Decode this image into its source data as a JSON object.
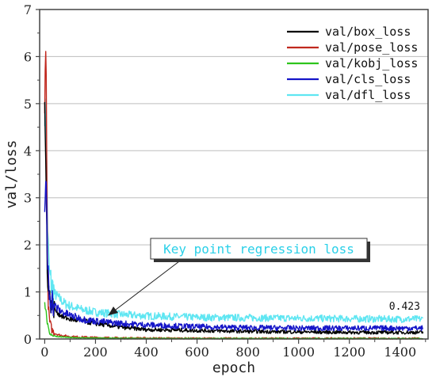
{
  "chart_data": {
    "type": "line",
    "xlabel": "epoch",
    "ylabel": "val/loss",
    "xlim": [
      -20,
      1510
    ],
    "ylim": [
      0,
      7
    ],
    "xticks": [
      0,
      200,
      400,
      600,
      800,
      1000,
      1200,
      1400
    ],
    "yticks": [
      0,
      1,
      2,
      3,
      4,
      5,
      6,
      7
    ],
    "grid": true,
    "legend_position": "top-right",
    "series": [
      {
        "name": "val/box_loss",
        "color": "#000000",
        "x": [
          0,
          5,
          10,
          15,
          20,
          30,
          40,
          60,
          80,
          100,
          150,
          200,
          300,
          400,
          600,
          800,
          1000,
          1200,
          1400,
          1490
        ],
        "y": [
          5.0,
          3.4,
          1.6,
          1.05,
          0.85,
          0.7,
          0.62,
          0.52,
          0.45,
          0.42,
          0.38,
          0.33,
          0.25,
          0.2,
          0.18,
          0.16,
          0.15,
          0.14,
          0.14,
          0.14
        ]
      },
      {
        "name": "val/pose_loss",
        "color": "#c0281e",
        "x": [
          0,
          3,
          6,
          9,
          12,
          15,
          20,
          25,
          30,
          40,
          60,
          100,
          200,
          300,
          600,
          1000,
          1490
        ],
        "y": [
          5.0,
          6.2,
          5.6,
          3.0,
          1.2,
          0.6,
          0.35,
          0.25,
          0.18,
          0.12,
          0.08,
          0.05,
          0.03,
          0.02,
          0.01,
          0.01,
          0.01
        ]
      },
      {
        "name": "val/kobj_loss",
        "color": "#2ec41c",
        "x": [
          0,
          5,
          10,
          15,
          20,
          30,
          50,
          100,
          200,
          400,
          800,
          1490
        ],
        "y": [
          0.75,
          0.6,
          0.35,
          0.2,
          0.12,
          0.08,
          0.05,
          0.03,
          0.02,
          0.01,
          0.01,
          0.01
        ]
      },
      {
        "name": "val/cls_loss",
        "color": "#1515c8",
        "x": [
          0,
          5,
          10,
          15,
          20,
          30,
          40,
          60,
          80,
          100,
          150,
          200,
          300,
          400,
          500,
          600,
          800,
          1000,
          1200,
          1400,
          1490
        ],
        "y": [
          2.8,
          3.3,
          1.9,
          1.25,
          1.0,
          0.8,
          0.7,
          0.6,
          0.55,
          0.5,
          0.42,
          0.38,
          0.33,
          0.3,
          0.28,
          0.26,
          0.24,
          0.23,
          0.23,
          0.23,
          0.23
        ]
      },
      {
        "name": "val/dfl_loss",
        "color": "#5fe6f2",
        "x": [
          0,
          5,
          10,
          15,
          20,
          30,
          40,
          60,
          80,
          100,
          150,
          200,
          300,
          400,
          600,
          800,
          1000,
          1200,
          1400,
          1490
        ],
        "y": [
          4.9,
          4.6,
          2.9,
          1.7,
          1.3,
          1.1,
          0.95,
          0.85,
          0.75,
          0.7,
          0.62,
          0.57,
          0.52,
          0.49,
          0.46,
          0.45,
          0.44,
          0.43,
          0.423,
          0.423
        ]
      }
    ],
    "annotations": {
      "box_text": "Key point regression loss",
      "box_text_color": "#2ad0e8",
      "arrow_target": {
        "x": 250,
        "y": 0.5
      },
      "value_label": "0.423",
      "value_label_at": {
        "x": 1430,
        "y": 0.423
      }
    }
  }
}
